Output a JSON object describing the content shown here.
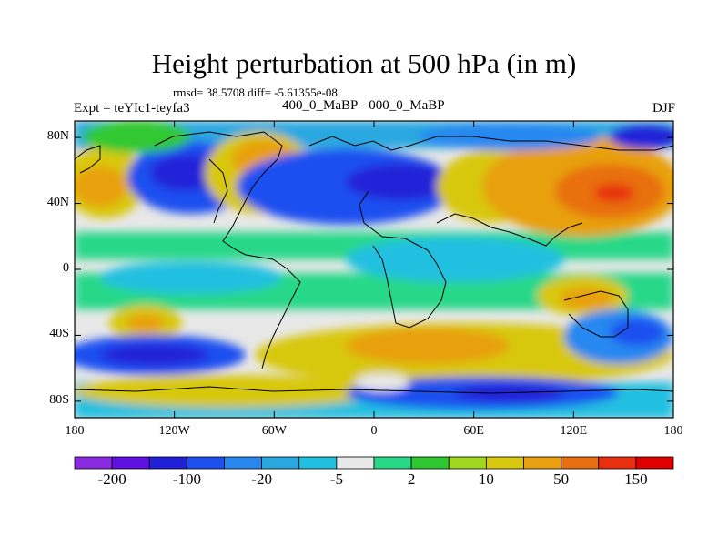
{
  "title": "Height perturbation at 500 hPa (in m)",
  "stats": "rmsd= 38.5708 diff= -5.61355e-08",
  "experiment": "Expt = teYIc1-teyfa3",
  "comparison": "400_0_MaBP - 000_0_MaBP",
  "season": "DJF",
  "map": {
    "projection": "cylindrical equidistant",
    "lon_range": [
      -180,
      180
    ],
    "lat_range": [
      -90,
      90
    ],
    "y_ticks": [
      {
        "label": "80N",
        "lat": 80
      },
      {
        "label": "40N",
        "lat": 40
      },
      {
        "label": "0",
        "lat": 0
      },
      {
        "label": "40S",
        "lat": -40
      },
      {
        "label": "80S",
        "lat": -80
      }
    ],
    "x_ticks": [
      {
        "label": "180",
        "lon": -180
      },
      {
        "label": "120W",
        "lon": -120
      },
      {
        "label": "60W",
        "lon": -60
      },
      {
        "label": "0",
        "lon": 0
      },
      {
        "label": "60E",
        "lon": 60
      },
      {
        "label": "120E",
        "lon": 120
      },
      {
        "label": "180",
        "lon": 180
      }
    ]
  },
  "colorbar": {
    "colors": [
      "#8a2be2",
      "#6010e0",
      "#2020d8",
      "#1e50f0",
      "#2888f0",
      "#2aa8e0",
      "#22c0e0",
      "#e8e8e8",
      "#28d888",
      "#30c830",
      "#a0d820",
      "#d8c810",
      "#e8a010",
      "#e87010",
      "#e83010",
      "#e00000"
    ],
    "labels": [
      {
        "text": "-200",
        "index": 1
      },
      {
        "text": "-100",
        "index": 3
      },
      {
        "text": "-20",
        "index": 5
      },
      {
        "text": "-5",
        "index": 7
      },
      {
        "text": "2",
        "index": 9
      },
      {
        "text": "10",
        "index": 11
      },
      {
        "text": "50",
        "index": 13
      },
      {
        "text": "150",
        "index": 15
      }
    ]
  }
}
